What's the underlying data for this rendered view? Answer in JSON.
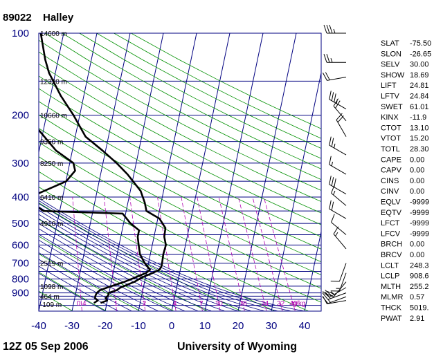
{
  "header": {
    "station_id": "89022",
    "station_name": "Halley"
  },
  "footer": {
    "time": "12Z 05 Sep 2006",
    "source": "University of Wyoming"
  },
  "colors": {
    "isobar": "#000080",
    "isotherm": "#000080",
    "dry_adiabat": "#009000",
    "moist_adiabat": "#000080",
    "mixing_ratio": "#b000b0",
    "profile": "#000000"
  },
  "chart_data": {
    "type": "line",
    "subtype": "skew-T log-P",
    "xlim": [
      -40,
      45
    ],
    "ylim": [
      1050,
      100
    ],
    "y_scale": "log",
    "pressure_ticks": [
      100,
      200,
      300,
      400,
      500,
      600,
      700,
      800,
      900
    ],
    "temperature_ticks": [
      -40,
      -30,
      -20,
      -10,
      0,
      10,
      20,
      30,
      40
    ],
    "heights": [
      {
        "p": 100,
        "label": "14600 m"
      },
      {
        "p": 150,
        "label": "12320 m"
      },
      {
        "p": 200,
        "label": "10660 m"
      },
      {
        "p": 250,
        "label": "9350 m"
      },
      {
        "p": 300,
        "label": "8250 m"
      },
      {
        "p": 400,
        "label": "6410 m"
      },
      {
        "p": 500,
        "label": "4910 m"
      },
      {
        "p": 700,
        "label": "2519 m"
      },
      {
        "p": 850,
        "label": "1098 m"
      },
      {
        "p": 925,
        "label": "464 m"
      },
      {
        "p": 1000,
        "label": "-109 m"
      }
    ],
    "mixing_ratio_labels": [
      "0.4",
      "1",
      "2",
      "4",
      "7",
      "10",
      "16",
      "24",
      "32",
      "40",
      "g/kg"
    ],
    "mixing_ratio_values": [
      0.4,
      1,
      2,
      4,
      7,
      10,
      16,
      24,
      32,
      40
    ],
    "series": [
      {
        "values": [
          [
            980,
            -21.9
          ],
          [
            960,
            -20.1
          ],
          [
            940,
            -20.7
          ],
          [
            920,
            -20.1
          ],
          [
            900,
            -20.1
          ],
          [
            880,
            -17.9
          ],
          [
            860,
            -16.9
          ],
          [
            820,
            -13.1
          ],
          [
            790,
            -11.1
          ],
          [
            760,
            -8.1
          ],
          [
            740,
            -6.3
          ],
          [
            720,
            -5.9
          ],
          [
            700,
            -5.9
          ],
          [
            650,
            -6.1
          ],
          [
            600,
            -5.9
          ],
          [
            560,
            -6.9
          ],
          [
            520,
            -7.1
          ],
          [
            480,
            -9.5
          ],
          [
            450,
            -13.9
          ],
          [
            420,
            -14.9
          ],
          [
            380,
            -16.9
          ],
          [
            330,
            -21.9
          ],
          [
            300,
            -25.9
          ],
          [
            270,
            -30.9
          ],
          [
            240,
            -36.9
          ],
          [
            200,
            -41.9
          ],
          [
            170,
            -46.9
          ],
          [
            140,
            -51.9
          ],
          [
            125,
            -53.9
          ],
          [
            100,
            -56.9
          ]
        ]
      },
      {
        "values": [
          [
            980,
            -23.9
          ],
          [
            960,
            -22.9
          ],
          [
            940,
            -23.9
          ],
          [
            920,
            -23.9
          ],
          [
            900,
            -23.7
          ],
          [
            880,
            -22.9
          ],
          [
            860,
            -20.9
          ],
          [
            820,
            -16.1
          ],
          [
            790,
            -13.1
          ],
          [
            760,
            -10.1
          ],
          [
            740,
            -9.1
          ],
          [
            720,
            -10.1
          ],
          [
            700,
            -11.1
          ],
          [
            650,
            -13.1
          ],
          [
            600,
            -14.1
          ],
          [
            560,
            -14.9
          ],
          [
            530,
            -14.9
          ],
          [
            500,
            -17.9
          ],
          [
            460,
            -20.9
          ],
          [
            450,
            -44.9
          ],
          [
            420,
            -48.9
          ],
          [
            400,
            -47.9
          ],
          [
            390,
            -47.9
          ],
          [
            350,
            -39.9
          ],
          [
            320,
            -37.9
          ],
          [
            300,
            -38.9
          ],
          [
            270,
            -44.9
          ],
          [
            230,
            -50.9
          ],
          [
            200,
            -55.9
          ],
          [
            150,
            -65.9
          ],
          [
            120,
            -70.9
          ],
          [
            100,
            -75.9
          ]
        ]
      }
    ],
    "wind_barbs": [
      {
        "p": 100,
        "dir": 270,
        "kt": 35
      },
      {
        "p": 128,
        "dir": 270,
        "kt": 25
      },
      {
        "p": 145,
        "dir": 260,
        "kt": 20
      },
      {
        "p": 190,
        "dir": 300,
        "kt": 35
      },
      {
        "p": 210,
        "dir": 320,
        "kt": 20
      },
      {
        "p": 240,
        "dir": 330,
        "kt": 20
      },
      {
        "p": 280,
        "dir": 300,
        "kt": 25
      },
      {
        "p": 330,
        "dir": 300,
        "kt": 15
      },
      {
        "p": 390,
        "dir": 300,
        "kt": 30
      },
      {
        "p": 430,
        "dir": 310,
        "kt": 15
      },
      {
        "p": 480,
        "dir": 300,
        "kt": 20
      },
      {
        "p": 550,
        "dir": 310,
        "kt": 10
      },
      {
        "p": 620,
        "dir": 320,
        "kt": 15
      },
      {
        "p": 700,
        "dir": 200,
        "kt": 10
      },
      {
        "p": 760,
        "dir": 200,
        "kt": 15
      },
      {
        "p": 820,
        "dir": 220,
        "kt": 20
      },
      {
        "p": 860,
        "dir": 240,
        "kt": 25
      },
      {
        "p": 900,
        "dir": 250,
        "kt": 20
      },
      {
        "p": 930,
        "dir": 250,
        "kt": 15
      },
      {
        "p": 960,
        "dir": 260,
        "kt": 10
      }
    ]
  },
  "indices": [
    {
      "label": "SLAT",
      "value": "-75.50"
    },
    {
      "label": "SLON",
      "value": "-26.65"
    },
    {
      "label": "SELV",
      "value": "30.00"
    },
    {
      "label": "SHOW",
      "value": "18.69"
    },
    {
      "label": "LIFT",
      "value": "24.81"
    },
    {
      "label": "LFTV",
      "value": "24.84"
    },
    {
      "label": "SWET",
      "value": "61.01"
    },
    {
      "label": "KINX",
      "value": "-11.9"
    },
    {
      "label": "CTOT",
      "value": "13.10"
    },
    {
      "label": "VTOT",
      "value": "15.20"
    },
    {
      "label": "TOTL",
      "value": "28.30"
    },
    {
      "label": "CAPE",
      "value": "0.00"
    },
    {
      "label": "CAPV",
      "value": "0.00"
    },
    {
      "label": "CINS",
      "value": "0.00"
    },
    {
      "label": "CINV",
      "value": "0.00"
    },
    {
      "label": "EQLV",
      "value": "-9999"
    },
    {
      "label": "EQTV",
      "value": "-9999"
    },
    {
      "label": "LFCT",
      "value": "-9999"
    },
    {
      "label": "LFCV",
      "value": "-9999"
    },
    {
      "label": "BRCH",
      "value": "0.00"
    },
    {
      "label": "BRCV",
      "value": "0.00"
    },
    {
      "label": "LCLT",
      "value": "248.3"
    },
    {
      "label": "LCLP",
      "value": "908.6"
    },
    {
      "label": "MLTH",
      "value": "255.2"
    },
    {
      "label": "MLMR",
      "value": "0.57"
    },
    {
      "label": "THCK",
      "value": "5019."
    },
    {
      "label": "PWAT",
      "value": "2.91"
    }
  ]
}
